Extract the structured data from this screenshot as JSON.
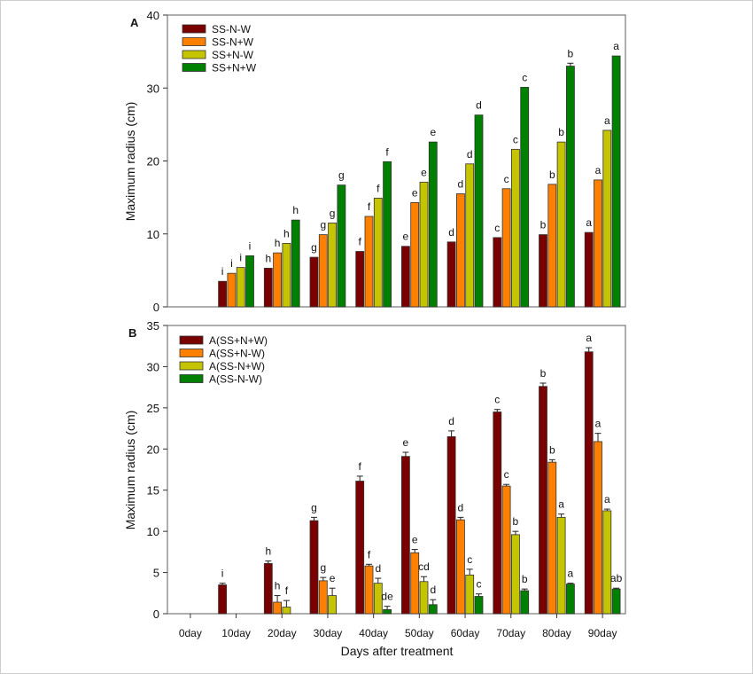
{
  "colors": {
    "dark_red": "#7a0000",
    "orange": "#ff8000",
    "olive": "#c4c400",
    "green": "#008000"
  },
  "shared_xlabel": "Days after treatment",
  "chart_data": [
    {
      "type": "bar",
      "panel": "A",
      "ylabel": "Maximum radius (cm)",
      "ylim": [
        0,
        40
      ],
      "yticks": [
        0,
        10,
        20,
        30,
        40
      ],
      "categories": [
        "0day",
        "10day",
        "20day",
        "30day",
        "40day",
        "50day",
        "60day",
        "70day",
        "80day",
        "90day"
      ],
      "show_xticklabels": false,
      "legend_position": "top-left",
      "series": [
        {
          "name": "SS-N-W",
          "color": "#7a0000",
          "values": [
            null,
            3.5,
            5.3,
            6.8,
            7.6,
            8.3,
            8.9,
            9.5,
            9.9,
            10.2
          ],
          "errors": [
            null,
            0,
            0,
            0,
            0,
            0,
            0,
            0,
            0,
            0
          ],
          "letters": [
            "",
            "i",
            "h",
            "g",
            "f",
            "e",
            "d",
            "c",
            "b",
            "a"
          ]
        },
        {
          "name": "SS-N+W",
          "color": "#ff8000",
          "values": [
            null,
            4.6,
            7.4,
            9.9,
            12.4,
            14.3,
            15.5,
            16.2,
            16.8,
            17.4
          ],
          "errors": [
            null,
            0,
            0,
            0,
            0,
            0,
            0,
            0,
            0,
            0
          ],
          "letters": [
            "",
            "i",
            "h",
            "g",
            "f",
            "e",
            "d",
            "c",
            "b",
            "a"
          ]
        },
        {
          "name": "SS+N-W",
          "color": "#c4c400",
          "values": [
            null,
            5.4,
            8.7,
            11.5,
            14.9,
            17.1,
            19.6,
            21.6,
            22.6,
            24.2
          ],
          "errors": [
            null,
            0,
            0,
            0,
            0,
            0,
            0,
            0,
            0,
            0
          ],
          "letters": [
            "",
            "i",
            "h",
            "g",
            "f",
            "e",
            "d",
            "c",
            "b",
            "a"
          ]
        },
        {
          "name": "SS+N+W",
          "color": "#008000",
          "values": [
            null,
            7.0,
            11.9,
            16.7,
            19.9,
            22.6,
            26.3,
            30.1,
            33.0,
            34.4
          ],
          "errors": [
            null,
            0,
            0,
            0,
            0,
            0,
            0,
            0,
            0.4,
            0
          ],
          "letters": [
            "",
            "i",
            "h",
            "g",
            "f",
            "e",
            "d",
            "c",
            "b",
            "a"
          ]
        }
      ]
    },
    {
      "type": "bar",
      "panel": "B",
      "ylabel": "Maximum radius (cm)",
      "ylim": [
        0,
        35
      ],
      "yticks": [
        0,
        5,
        10,
        15,
        20,
        25,
        30,
        35
      ],
      "categories": [
        "0day",
        "10day",
        "20day",
        "30day",
        "40day",
        "50day",
        "60day",
        "70day",
        "80day",
        "90day"
      ],
      "show_xticklabels": true,
      "legend_position": "top-left",
      "series": [
        {
          "name": "A(SS+N+W)",
          "color": "#7a0000",
          "values": [
            null,
            3.5,
            6.1,
            11.3,
            16.1,
            19.1,
            21.5,
            24.5,
            27.6,
            31.8
          ],
          "errors": [
            null,
            0.2,
            0.3,
            0.4,
            0.6,
            0.5,
            0.7,
            0.3,
            0.4,
            0.5
          ],
          "letters": [
            "",
            "i",
            "h",
            "g",
            "f",
            "e",
            "d",
            "c",
            "b",
            "a"
          ]
        },
        {
          "name": "A(SS+N-W)",
          "color": "#ff8000",
          "values": [
            null,
            null,
            1.4,
            4.0,
            5.8,
            7.4,
            11.4,
            15.5,
            18.4,
            20.9
          ],
          "errors": [
            null,
            null,
            0.8,
            0.4,
            0.2,
            0.4,
            0.3,
            0.2,
            0.3,
            1.0
          ],
          "letters": [
            "",
            "",
            "h",
            "g",
            "f",
            "e",
            "d",
            "c",
            "b",
            "a"
          ]
        },
        {
          "name": "A(SS-N+W)",
          "color": "#c4c400",
          "values": [
            null,
            null,
            0.8,
            2.2,
            3.7,
            3.9,
            4.7,
            9.6,
            11.7,
            12.5
          ],
          "errors": [
            null,
            null,
            0.8,
            0.9,
            0.6,
            0.6,
            0.7,
            0.4,
            0.4,
            0.2
          ],
          "letters": [
            "",
            "",
            "f",
            "e",
            "d",
            "cd",
            "c",
            "b",
            "a",
            "a"
          ]
        },
        {
          "name": "A(SS-N-W)",
          "color": "#008000",
          "values": [
            null,
            null,
            null,
            null,
            0.5,
            1.1,
            2.1,
            2.8,
            3.6,
            3.0
          ],
          "errors": [
            null,
            null,
            null,
            null,
            0.4,
            0.6,
            0.3,
            0.2,
            0.1,
            0.1
          ],
          "letters": [
            "",
            "",
            "",
            "",
            "de",
            "d",
            "c",
            "b",
            "a",
            "ab"
          ]
        }
      ]
    }
  ]
}
